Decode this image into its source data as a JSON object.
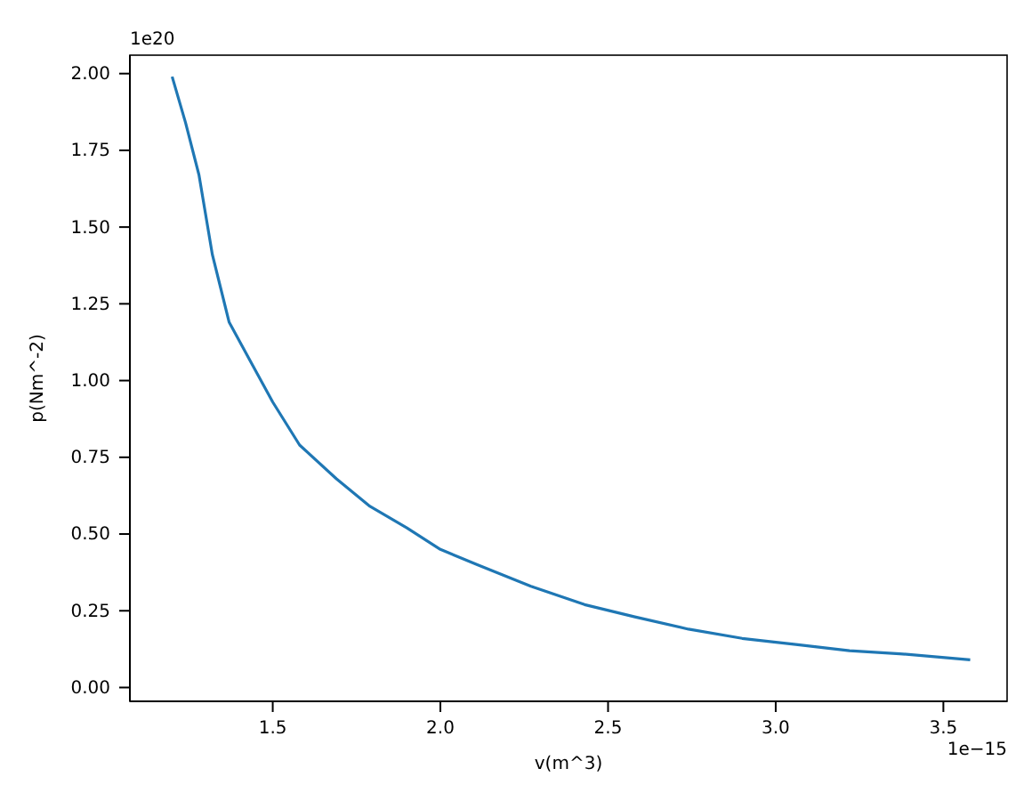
{
  "chart_data": {
    "type": "line",
    "xlabel": "v(m^3)",
    "ylabel": "p(Nm^-2)",
    "annotations": [
      "1e20",
      "1e−15"
    ],
    "xlim": [
      1.074,
      3.69
    ],
    "ylim": [
      -0.045,
      2.06
    ],
    "xticks": [
      1.5,
      {
        "value": 2,
        "label": "2.0"
      },
      2.5,
      {
        "value": 3,
        "label": "3.0"
      },
      3.5
    ],
    "yticks": [
      {
        "value": 0,
        "label": "0.00"
      },
      {
        "value": 0.25,
        "label": "0.25"
      },
      {
        "value": 0.5,
        "label": "0.50"
      },
      {
        "value": 0.75,
        "label": "0.75"
      },
      {
        "value": 1,
        "label": "1.00"
      },
      {
        "value": 1.25,
        "label": "1.25"
      },
      {
        "value": 1.5,
        "label": "1.50"
      },
      {
        "value": 1.75,
        "label": "1.75"
      },
      {
        "value": 2,
        "label": "2.00"
      }
    ],
    "grid": false,
    "marker": "none",
    "line_style": "solid",
    "series": [
      {
        "color": "#1f77b4",
        "x": [
          1.2,
          1.24,
          1.28,
          1.32,
          1.37,
          1.43,
          1.5,
          1.58,
          1.69,
          1.79,
          1.9,
          2.0,
          2.11,
          2.27,
          2.43,
          2.58,
          2.74,
          2.9,
          3.06,
          3.22,
          3.37,
          3.58
        ],
        "values": [
          1.99,
          1.84,
          1.67,
          1.41,
          1.19,
          1.07,
          0.93,
          0.79,
          0.68,
          0.59,
          0.52,
          0.45,
          0.4,
          0.33,
          0.27,
          0.23,
          0.19,
          0.16,
          0.14,
          0.12,
          0.11,
          0.09
        ]
      }
    ]
  }
}
